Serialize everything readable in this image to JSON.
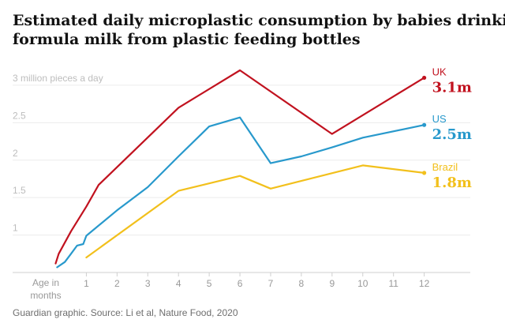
{
  "chart_data": {
    "type": "line",
    "title": "Estimated daily microplastic consumption by babies drinking formula milk from plastic feeding bottles",
    "title_lines": [
      "Estimated daily microplastic consumption by babies drinking",
      "formula milk from plastic feeding bottles"
    ],
    "xlabel_lines": [
      "Age in",
      "months"
    ],
    "y_ticks": [
      {
        "value": 1,
        "label": "1"
      },
      {
        "value": 1.5,
        "label": "1.5"
      },
      {
        "value": 2,
        "label": "2"
      },
      {
        "value": 2.5,
        "label": "2.5"
      },
      {
        "value": 3,
        "label": "3 million pieces a day"
      }
    ],
    "x_ticks": [
      1,
      2,
      3,
      4,
      5,
      6,
      7,
      8,
      9,
      10,
      11,
      12
    ],
    "ylim": [
      0.5,
      3.4
    ],
    "xlim": [
      -1.4,
      13.5
    ],
    "grid": true,
    "series": [
      {
        "name": "UK",
        "end_label": "3.1m",
        "color": "#c1121f",
        "points": [
          [
            0,
            0.62
          ],
          [
            0.1,
            0.75
          ],
          [
            0.5,
            1.05
          ],
          [
            1,
            1.38
          ],
          [
            1.4,
            1.67
          ],
          [
            4,
            2.7
          ],
          [
            6,
            3.2
          ],
          [
            9,
            2.35
          ],
          [
            12,
            3.1
          ]
        ]
      },
      {
        "name": "US",
        "end_label": "2.5m",
        "color": "#2899cc",
        "points": [
          [
            0.05,
            0.57
          ],
          [
            0.3,
            0.64
          ],
          [
            0.5,
            0.75
          ],
          [
            0.7,
            0.86
          ],
          [
            0.9,
            0.88
          ],
          [
            1,
            0.99
          ],
          [
            2,
            1.33
          ],
          [
            3,
            1.64
          ],
          [
            4,
            2.05
          ],
          [
            5,
            2.45
          ],
          [
            6,
            2.57
          ],
          [
            7,
            1.96
          ],
          [
            8,
            2.05
          ],
          [
            9,
            2.17
          ],
          [
            10,
            2.3
          ],
          [
            12,
            2.47
          ]
        ]
      },
      {
        "name": "Brazil",
        "end_label": "1.8m",
        "color": "#f2c01c",
        "points": [
          [
            1,
            0.7
          ],
          [
            4,
            1.59
          ],
          [
            6,
            1.79
          ],
          [
            7,
            1.62
          ],
          [
            10,
            1.93
          ],
          [
            12,
            1.83
          ]
        ]
      }
    ],
    "source": "Guardian graphic. Source: Li et al, Nature Food, 2020"
  }
}
